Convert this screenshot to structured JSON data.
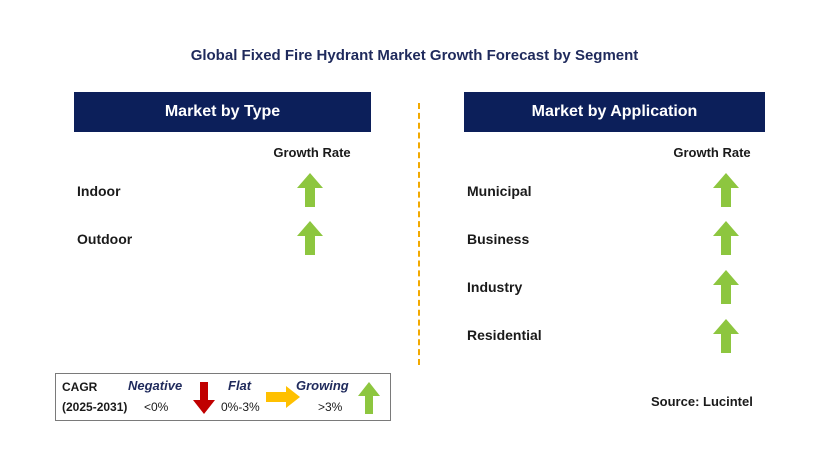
{
  "title": "Global Fixed Fire Hydrant Market Growth Forecast by Segment",
  "colors": {
    "header_bg": "#0c1f5a",
    "growing": "#8dc63f",
    "negative": "#c00000",
    "flat": "#ffc000",
    "divider": "#f2a900"
  },
  "chart_data": {
    "type": "table",
    "title": "Global Fixed Fire Hydrant Market Growth Forecast by Segment",
    "panels": [
      {
        "header": "Market by Type",
        "column_header": "Growth Rate",
        "rows": [
          {
            "label": "Indoor",
            "growth": "growing"
          },
          {
            "label": "Outdoor",
            "growth": "growing"
          }
        ]
      },
      {
        "header": "Market by Application",
        "column_header": "Growth Rate",
        "rows": [
          {
            "label": "Municipal",
            "growth": "growing"
          },
          {
            "label": "Business",
            "growth": "growing"
          },
          {
            "label": "Industry",
            "growth": "growing"
          },
          {
            "label": "Residential",
            "growth": "growing"
          }
        ]
      }
    ]
  },
  "legend": {
    "cagr_label": "CAGR",
    "period": "(2025-2031)",
    "negative": {
      "label": "Negative",
      "range": "<0%",
      "icon": "down-arrow-icon"
    },
    "flat": {
      "label": "Flat",
      "range": "0%-3%",
      "icon": "right-arrow-icon"
    },
    "growing": {
      "label": "Growing",
      "range": ">3%",
      "icon": "up-arrow-icon"
    }
  },
  "source": "Source: Lucintel"
}
